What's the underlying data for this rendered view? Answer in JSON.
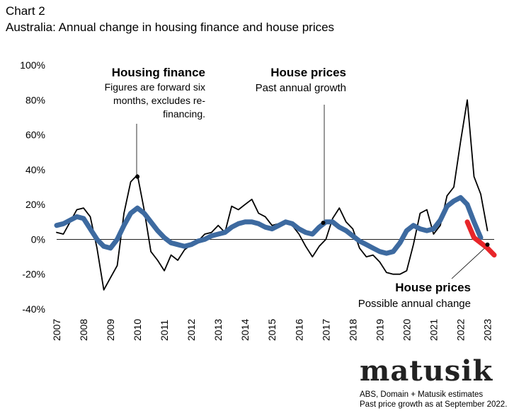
{
  "header": {
    "label": "Chart 2",
    "title": "Australia: Annual change in housing finance and house prices"
  },
  "annotations": {
    "finance_title": "Housing finance",
    "finance_lines": [
      "Figures are forward six",
      "months, excludes re-",
      "financing."
    ],
    "prices_past_title": "House prices",
    "prices_past_sub": "Past annual growth",
    "prices_future_title": "House prices",
    "prices_future_sub": "Possible annual change"
  },
  "logo": "matusik",
  "source": {
    "line1": "ABS, Domain + Matusik estimates",
    "line2": "Past price growth as at September 2022."
  },
  "colors": {
    "finance": "#000000",
    "prices": "#3d6aa0",
    "forecast": "#e8262a"
  },
  "chart_data": {
    "type": "line",
    "title": "Australia: Annual change in housing finance and house prices",
    "xlabel": "",
    "ylabel": "",
    "ylim": [
      -40,
      100
    ],
    "yticks": [
      {
        "v": 100,
        "label": "100%"
      },
      {
        "v": 80,
        "label": "80%"
      },
      {
        "v": 60,
        "label": "60%"
      },
      {
        "v": 40,
        "label": "40%"
      },
      {
        "v": 20,
        "label": "20%"
      },
      {
        "v": 0,
        "label": "0%"
      },
      {
        "v": -20,
        "label": "-20%"
      },
      {
        "v": -40,
        "label": "-40%"
      }
    ],
    "xlim": [
      2007,
      2023.25
    ],
    "xticks": [
      "2007",
      "2008",
      "2009",
      "2010",
      "2011",
      "2012",
      "2013",
      "2014",
      "2015",
      "2016",
      "2017",
      "2018",
      "2019",
      "2020",
      "2021",
      "2022",
      "2023"
    ],
    "series": [
      {
        "name": "Housing finance",
        "x": [
          2007.0,
          2007.25,
          2007.5,
          2007.75,
          2008.0,
          2008.25,
          2008.5,
          2008.75,
          2009.0,
          2009.25,
          2009.5,
          2009.75,
          2010.0,
          2010.25,
          2010.5,
          2010.75,
          2011.0,
          2011.25,
          2011.5,
          2011.75,
          2012.0,
          2012.25,
          2012.5,
          2012.75,
          2013.0,
          2013.25,
          2013.5,
          2013.75,
          2014.0,
          2014.25,
          2014.5,
          2014.75,
          2015.0,
          2015.25,
          2015.5,
          2015.75,
          2016.0,
          2016.25,
          2016.5,
          2016.75,
          2017.0,
          2017.25,
          2017.5,
          2017.75,
          2018.0,
          2018.25,
          2018.5,
          2018.75,
          2019.0,
          2019.25,
          2019.5,
          2019.75,
          2020.0,
          2020.25,
          2020.5,
          2020.75,
          2021.0,
          2021.25,
          2021.5,
          2021.75,
          2022.0,
          2022.25,
          2022.5,
          2022.75,
          2023.0
        ],
        "values": [
          4,
          3,
          10,
          17,
          18,
          13,
          -5,
          -29,
          -22,
          -15,
          15,
          33,
          37,
          17,
          -7,
          -12,
          -18,
          -9,
          -12,
          -6,
          -3,
          -1,
          3,
          4,
          8,
          4,
          19,
          17,
          20,
          23,
          15,
          13,
          8,
          9,
          11,
          8,
          3,
          -4,
          -10,
          -4,
          0,
          12,
          18,
          10,
          6,
          -5,
          -10,
          -9,
          -13,
          -19,
          -20,
          -20,
          -18,
          -3,
          15,
          17,
          3,
          8,
          25,
          30,
          56,
          80,
          36,
          26,
          5
        ]
      },
      {
        "name": "House prices",
        "x": [
          2007.0,
          2007.25,
          2007.5,
          2007.75,
          2008.0,
          2008.25,
          2008.5,
          2008.75,
          2009.0,
          2009.25,
          2009.5,
          2009.75,
          2010.0,
          2010.25,
          2010.5,
          2010.75,
          2011.0,
          2011.25,
          2011.5,
          2011.75,
          2012.0,
          2012.25,
          2012.5,
          2012.75,
          2013.0,
          2013.25,
          2013.5,
          2013.75,
          2014.0,
          2014.25,
          2014.5,
          2014.75,
          2015.0,
          2015.25,
          2015.5,
          2015.75,
          2016.0,
          2016.25,
          2016.5,
          2016.75,
          2017.0,
          2017.25,
          2017.5,
          2017.75,
          2018.0,
          2018.25,
          2018.5,
          2018.75,
          2019.0,
          2019.25,
          2019.5,
          2019.75,
          2020.0,
          2020.25,
          2020.5,
          2020.75,
          2021.0,
          2021.25,
          2021.5,
          2021.75,
          2022.0,
          2022.25,
          2022.5,
          2022.75
        ],
        "values": [
          8,
          9,
          11,
          13,
          12,
          6,
          0,
          -4,
          -5,
          0,
          8,
          15,
          18,
          15,
          10,
          5,
          1,
          -2,
          -3,
          -4,
          -3,
          -1,
          0,
          2,
          3,
          4,
          7,
          9,
          10,
          10,
          9,
          7,
          6,
          8,
          10,
          9,
          6,
          4,
          3,
          7,
          10,
          10,
          7,
          5,
          2,
          -1,
          -3,
          -5,
          -7,
          -8,
          -7,
          -2,
          5,
          8,
          6,
          5,
          6,
          11,
          19,
          22,
          24,
          20,
          10,
          1
        ]
      },
      {
        "name": "Possible annual change",
        "x": [
          2022.25,
          2022.5,
          2022.75,
          2023.0,
          2023.25
        ],
        "values": [
          10,
          1,
          -2,
          -5,
          -9
        ]
      }
    ],
    "markers": [
      {
        "series": "Housing finance",
        "x": 2010.0,
        "y": 36
      },
      {
        "series": "House prices",
        "x": 2016.9,
        "y": 9.5
      },
      {
        "series": "Housing finance",
        "x": 2023.0,
        "y": -3
      }
    ]
  }
}
